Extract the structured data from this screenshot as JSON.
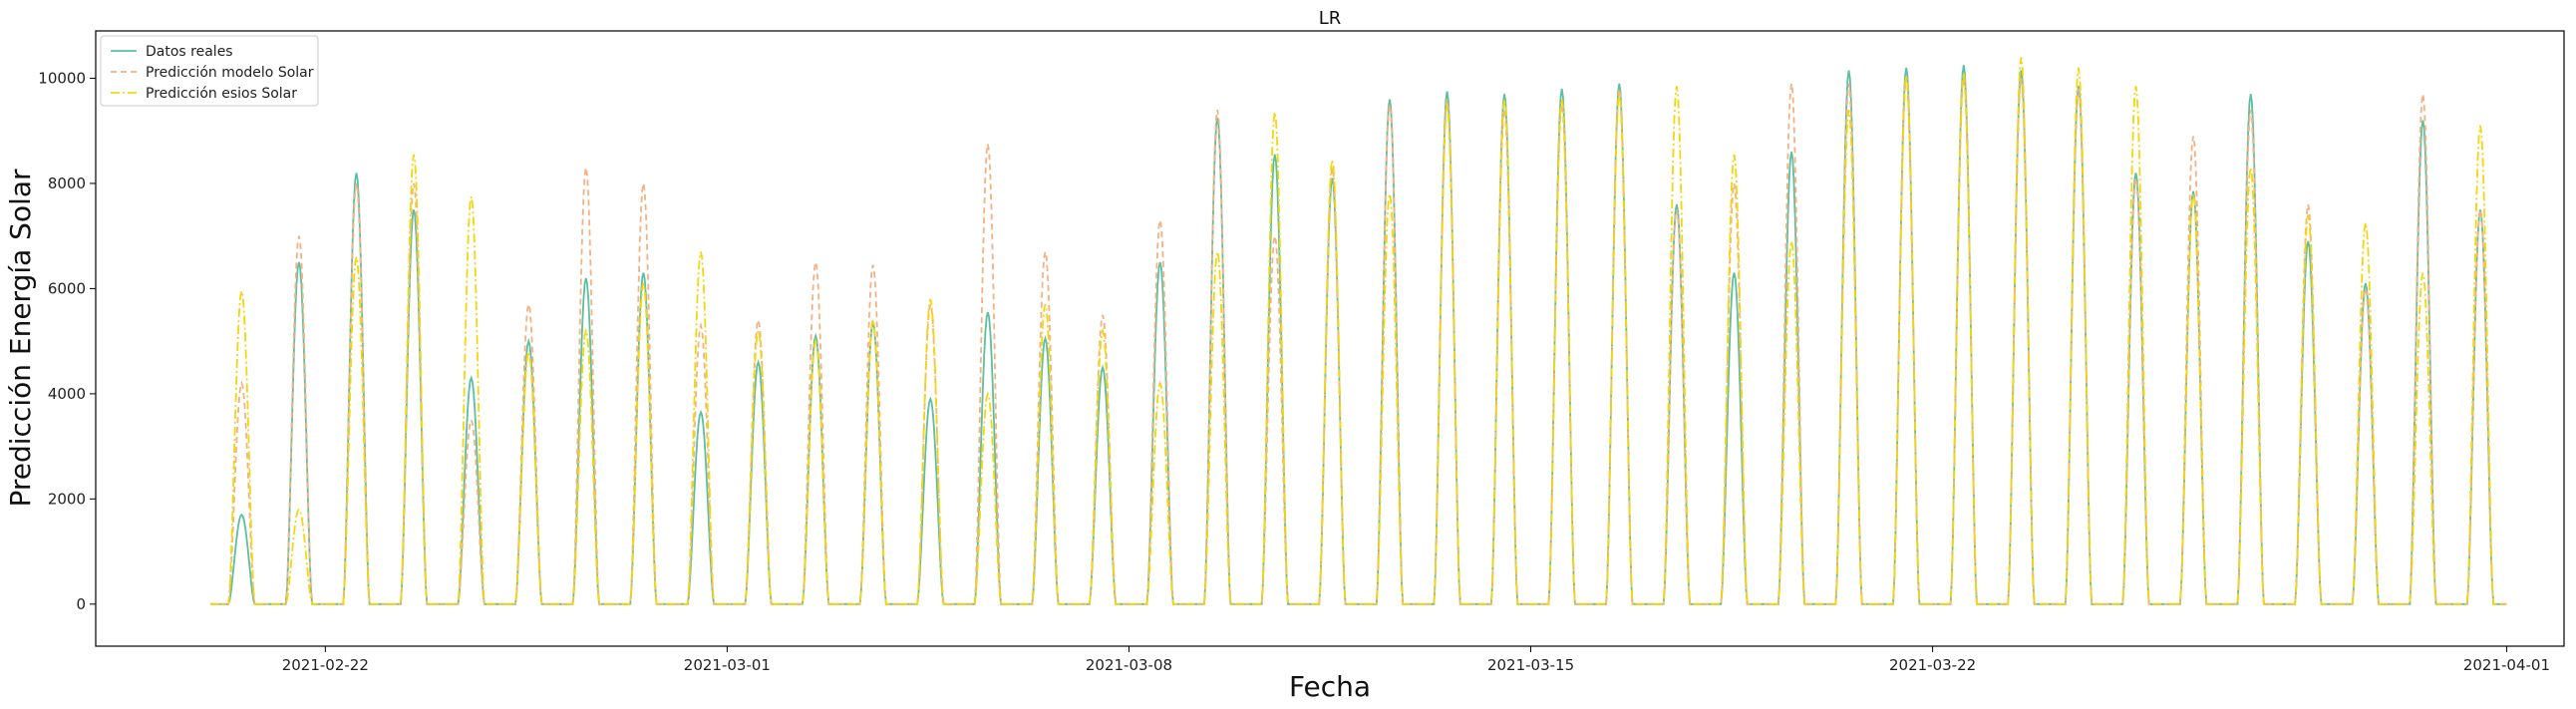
{
  "chart_data": {
    "type": "line",
    "title": "LR",
    "xlabel": "Fecha",
    "ylabel": "Predicción Energía Solar",
    "xlim": [
      "2021-02-18T00:00",
      "2021-04-02T00:00"
    ],
    "ylim": [
      -800,
      10900
    ],
    "x_ticks": [
      "2021-02-22",
      "2021-03-01",
      "2021-03-08",
      "2021-03-15",
      "2021-03-22",
      "2021-04-01"
    ],
    "y_ticks": [
      0,
      2000,
      4000,
      6000,
      8000,
      10000
    ],
    "grid": false,
    "legend_position": "top-left",
    "colors": {
      "actual": "#5cbf9f",
      "model": "#f4b183",
      "esios": "#f5d60a"
    },
    "series": [
      {
        "name": "Datos reales",
        "style": "solid",
        "daily_start": "2021-02-20",
        "daily_peaks": [
          1700,
          6500,
          8200,
          7500,
          4300,
          5000,
          6200,
          6300,
          3650,
          4600,
          5100,
          5350,
          3900,
          5550,
          5050,
          4500,
          6500,
          9250,
          8550,
          8100,
          9600,
          9750,
          9700,
          9800,
          9900,
          7600,
          6300,
          8600,
          10150,
          10200,
          10250,
          10150,
          9850,
          8200,
          7850,
          9700,
          6900,
          6100,
          9200,
          7500
        ]
      },
      {
        "name": "Predicción modelo Solar",
        "style": "dashed",
        "daily_start": "2021-02-20",
        "daily_peaks": [
          4200,
          7000,
          8000,
          8000,
          3500,
          5700,
          8300,
          8000,
          5300,
          5400,
          6500,
          6450,
          5700,
          8750,
          6700,
          5500,
          7300,
          9400,
          7000,
          8300,
          9500,
          9600,
          9400,
          9500,
          9800,
          7500,
          8000,
          9900,
          9900,
          10000,
          10000,
          10000,
          9800,
          8100,
          8900,
          9400,
          7600,
          6000,
          9700,
          7500
        ]
      },
      {
        "name": "Predicción esios Solar",
        "style": "dashdot",
        "daily_start": "2021-02-20",
        "daily_peaks": [
          5950,
          1800,
          6600,
          8550,
          7750,
          4800,
          5200,
          6100,
          6700,
          5200,
          5000,
          5400,
          5800,
          4000,
          5700,
          5200,
          4200,
          6700,
          9350,
          8450,
          7800,
          9500,
          9600,
          9600,
          9700,
          9850,
          8550,
          6900,
          9400,
          10050,
          10100,
          10400,
          10200,
          9850,
          7800,
          8300,
          7400,
          7250,
          6300,
          9100
        ]
      }
    ]
  }
}
